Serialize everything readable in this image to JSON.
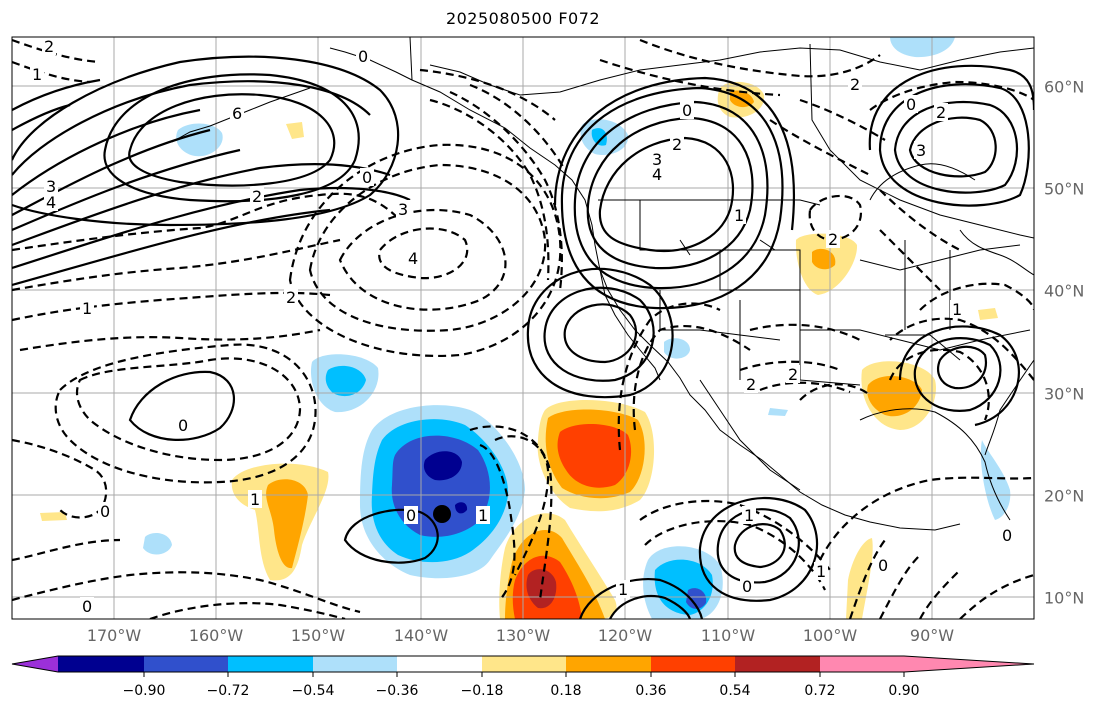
{
  "title": "2025080500 F072",
  "lon_labels": [
    "170°W",
    "160°W",
    "150°W",
    "140°W",
    "130°W",
    "120°W",
    "110°W",
    "100°W",
    "90°W"
  ],
  "lat_labels": [
    "60°N",
    "50°N",
    "40°N",
    "30°N",
    "20°N",
    "10°N"
  ],
  "colorbar": {
    "colors": [
      "#9b30d9",
      "#000090",
      "#3050cc",
      "#00bfff",
      "#aee0fa",
      "#ffffff",
      "#ffe68a",
      "#ffa500",
      "#ff4000",
      "#b22222",
      "#ff88b0"
    ],
    "tick_labels": [
      "−0.90",
      "−0.72",
      "−0.54",
      "−0.36",
      "−0.18",
      "0.18",
      "0.36",
      "0.54",
      "0.72",
      "0.90"
    ]
  },
  "contour_labels": [
    "2",
    "1",
    "0",
    "6",
    "3",
    "4",
    "2",
    "0",
    "3",
    "4",
    "2",
    "1",
    "0",
    "2",
    "3",
    "4",
    "1",
    "2",
    "0",
    "2",
    "3",
    "2",
    "1",
    "0",
    "0",
    "0",
    "1",
    "1",
    "0",
    "0",
    "2",
    "2",
    "1",
    "1",
    "0",
    "0",
    "1"
  ],
  "marker": "storm-center",
  "theme": {
    "negative_contour": "dashed",
    "positive_contour": "solid"
  }
}
